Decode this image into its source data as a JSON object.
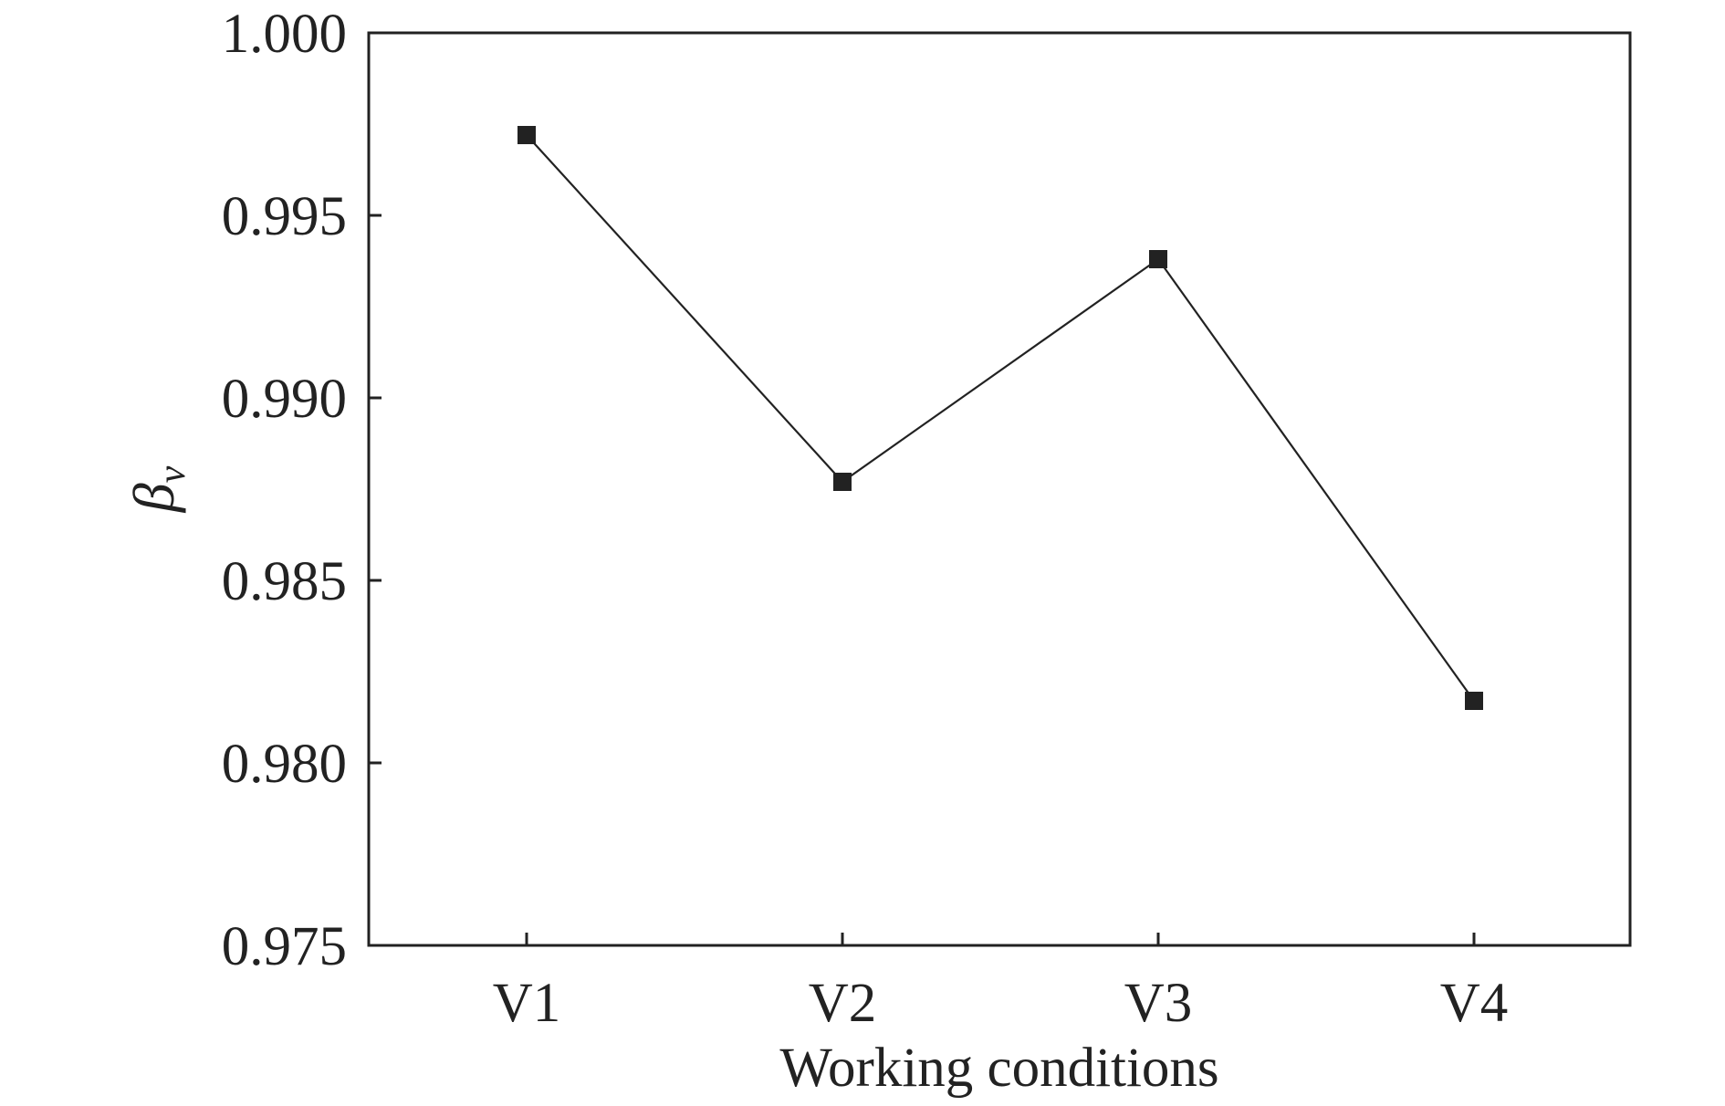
{
  "chart_data": {
    "type": "line",
    "title": "",
    "xlabel": "Working conditions",
    "ylabel": {
      "symbol": "β",
      "subscript": "v"
    },
    "categories": [
      "V1",
      "V2",
      "V3",
      "V4"
    ],
    "series": [
      {
        "values": [
          0.9972,
          0.9877,
          0.9938,
          0.9817
        ],
        "marker": "square",
        "color": "#222222"
      }
    ],
    "ylim": [
      0.975,
      1.0
    ],
    "yticks": [
      "0.975",
      "0.980",
      "0.985",
      "0.990",
      "0.995",
      "1.000"
    ],
    "grid": false,
    "legend": "none"
  }
}
